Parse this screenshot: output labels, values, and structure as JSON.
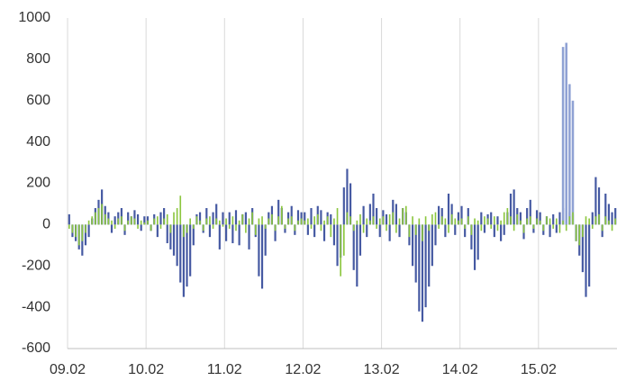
{
  "chart_data": {
    "type": "bar",
    "categories": [
      "09.02",
      null,
      null,
      null,
      null,
      null,
      null,
      null,
      null,
      null,
      null,
      null,
      null,
      null,
      null,
      null,
      null,
      null,
      null,
      null,
      null,
      null,
      null,
      null,
      "10.02",
      null,
      null,
      null,
      null,
      null,
      null,
      null,
      null,
      null,
      null,
      null,
      null,
      null,
      null,
      null,
      null,
      null,
      null,
      null,
      null,
      null,
      null,
      null,
      "11.02",
      null,
      null,
      null,
      null,
      null,
      null,
      null,
      null,
      null,
      null,
      null,
      null,
      null,
      null,
      null,
      null,
      null,
      null,
      null,
      null,
      null,
      null,
      null,
      "12.02",
      null,
      null,
      null,
      null,
      null,
      null,
      null,
      null,
      null,
      null,
      null,
      null,
      null,
      null,
      null,
      null,
      null,
      null,
      null,
      null,
      null,
      null,
      null,
      "13.02",
      null,
      null,
      null,
      null,
      null,
      null,
      null,
      null,
      null,
      null,
      null,
      null,
      null,
      null,
      null,
      null,
      null,
      null,
      null,
      null,
      null,
      null,
      null,
      "14.02",
      null,
      null,
      null,
      null,
      null,
      null,
      null,
      null,
      null,
      null,
      null,
      null,
      null,
      null,
      null,
      null,
      null,
      null,
      null,
      null,
      null,
      null,
      null,
      "15.02",
      null,
      null,
      null,
      null,
      null,
      null,
      null,
      null,
      null,
      null,
      null,
      null,
      null,
      null,
      null,
      null,
      null,
      null,
      null,
      null,
      null,
      null,
      null
    ],
    "series": [
      {
        "color": "#4559a2",
        "values": [
          50,
          -60,
          -80,
          -120,
          -150,
          -100,
          -60,
          30,
          80,
          120,
          170,
          90,
          60,
          -40,
          40,
          60,
          80,
          -50,
          60,
          40,
          70,
          50,
          -30,
          40,
          40,
          -30,
          50,
          -60,
          60,
          80,
          -90,
          -120,
          -150,
          -200,
          -280,
          -350,
          -300,
          -250,
          -100,
          50,
          60,
          -40,
          80,
          -60,
          60,
          100,
          -120,
          60,
          -80,
          60,
          -90,
          70,
          -100,
          50,
          60,
          -120,
          80,
          -60,
          -250,
          -310,
          -150,
          60,
          90,
          -80,
          120,
          80,
          -40,
          60,
          90,
          -50,
          70,
          60,
          60,
          -50,
          80,
          -60,
          90,
          70,
          -80,
          60,
          50,
          -100,
          -200,
          -160,
          180,
          270,
          200,
          -220,
          -300,
          -150,
          90,
          -60,
          100,
          150,
          80,
          -60,
          70,
          50,
          -80,
          120,
          100,
          -60,
          80,
          60,
          -100,
          -200,
          -280,
          -420,
          -470,
          -400,
          -300,
          -200,
          -100,
          90,
          80,
          -60,
          150,
          100,
          -50,
          60,
          90,
          -60,
          80,
          -120,
          -220,
          -170,
          60,
          -40,
          50,
          60,
          -60,
          40,
          -80,
          -50,
          60,
          150,
          170,
          80,
          60,
          -70,
          80,
          120,
          -40,
          70,
          60,
          -50,
          40,
          -60,
          50,
          -40,
          60,
          80,
          90,
          60,
          50,
          -80,
          -150,
          -230,
          -350,
          -300,
          60,
          230,
          180,
          -60,
          150,
          100,
          60,
          80
        ]
      },
      {
        "color": "#8fa2d4",
        "values": [
          0,
          0,
          0,
          0,
          0,
          0,
          0,
          0,
          0,
          0,
          0,
          0,
          0,
          0,
          0,
          0,
          0,
          0,
          0,
          0,
          0,
          0,
          0,
          0,
          0,
          0,
          0,
          0,
          0,
          0,
          0,
          0,
          0,
          0,
          0,
          0,
          0,
          0,
          0,
          0,
          0,
          0,
          0,
          0,
          0,
          0,
          0,
          0,
          0,
          0,
          0,
          0,
          0,
          0,
          0,
          0,
          0,
          0,
          0,
          0,
          0,
          0,
          0,
          0,
          0,
          0,
          0,
          0,
          0,
          0,
          0,
          0,
          0,
          0,
          0,
          0,
          0,
          0,
          0,
          0,
          0,
          0,
          0,
          0,
          0,
          0,
          0,
          0,
          0,
          0,
          0,
          0,
          0,
          0,
          0,
          0,
          0,
          0,
          0,
          0,
          0,
          0,
          0,
          0,
          0,
          0,
          0,
          0,
          0,
          0,
          0,
          0,
          0,
          0,
          0,
          0,
          0,
          0,
          0,
          0,
          0,
          0,
          0,
          0,
          0,
          0,
          0,
          0,
          0,
          0,
          0,
          0,
          0,
          0,
          0,
          0,
          0,
          0,
          0,
          0,
          0,
          0,
          0,
          0,
          0,
          0,
          0,
          0,
          0,
          0,
          0,
          860,
          880,
          680,
          600,
          0,
          0,
          0,
          0,
          0,
          0,
          0,
          0,
          0,
          0,
          0,
          0,
          0
        ]
      },
      {
        "color": "#8cc63f",
        "values": [
          -20,
          -40,
          -60,
          -100,
          -80,
          -40,
          20,
          40,
          60,
          80,
          100,
          50,
          30,
          20,
          -20,
          30,
          40,
          -30,
          20,
          40,
          30,
          -20,
          20,
          10,
          20,
          -30,
          30,
          40,
          -20,
          30,
          50,
          -40,
          60,
          80,
          140,
          -60,
          -40,
          30,
          -20,
          40,
          20,
          -30,
          30,
          40,
          -20,
          30,
          20,
          -10,
          30,
          -20,
          40,
          -30,
          20,
          50,
          -40,
          30,
          60,
          -50,
          30,
          40,
          -20,
          30,
          50,
          -30,
          40,
          90,
          -20,
          30,
          40,
          -30,
          20,
          30,
          20,
          30,
          -20,
          40,
          50,
          -30,
          20,
          40,
          -60,
          30,
          80,
          -250,
          -150,
          60,
          40,
          -30,
          20,
          50,
          -40,
          30,
          20,
          40,
          -20,
          30,
          40,
          -30,
          50,
          60,
          -40,
          30,
          80,
          90,
          -60,
          40,
          -50,
          30,
          -80,
          40,
          -30,
          50,
          60,
          -20,
          40,
          30,
          -40,
          50,
          30,
          20,
          30,
          -20,
          40,
          -50,
          30,
          20,
          -30,
          40,
          30,
          -20,
          40,
          -30,
          20,
          60,
          80,
          40,
          -30,
          50,
          20,
          -40,
          30,
          40,
          -20,
          30,
          20,
          -30,
          40,
          30,
          -20,
          30,
          -40,
          20,
          -30,
          40,
          60,
          -80,
          -100,
          -60,
          40,
          30,
          -20,
          40,
          50,
          -30,
          40,
          20,
          -30,
          30
        ]
      }
    ],
    "ylim": [
      -600,
      1000
    ],
    "yticks": [
      -600,
      -400,
      -200,
      0,
      200,
      400,
      600,
      800,
      1000
    ],
    "grid": true
  }
}
